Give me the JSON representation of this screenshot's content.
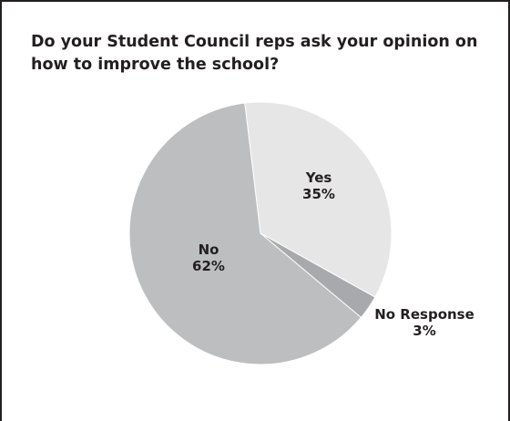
{
  "chart_data": {
    "type": "pie",
    "title": "Do your Student Council reps ask your opinion on how to improve the school?",
    "slices": [
      {
        "label": "Yes",
        "value": 35,
        "value_label": "35%",
        "color": "#e6e6e7"
      },
      {
        "label": "No Response",
        "value": 3,
        "value_label": "3%",
        "color": "#a7a9ac"
      },
      {
        "label": "No",
        "value": 62,
        "value_label": "62%",
        "color": "#bcbec0"
      }
    ]
  }
}
